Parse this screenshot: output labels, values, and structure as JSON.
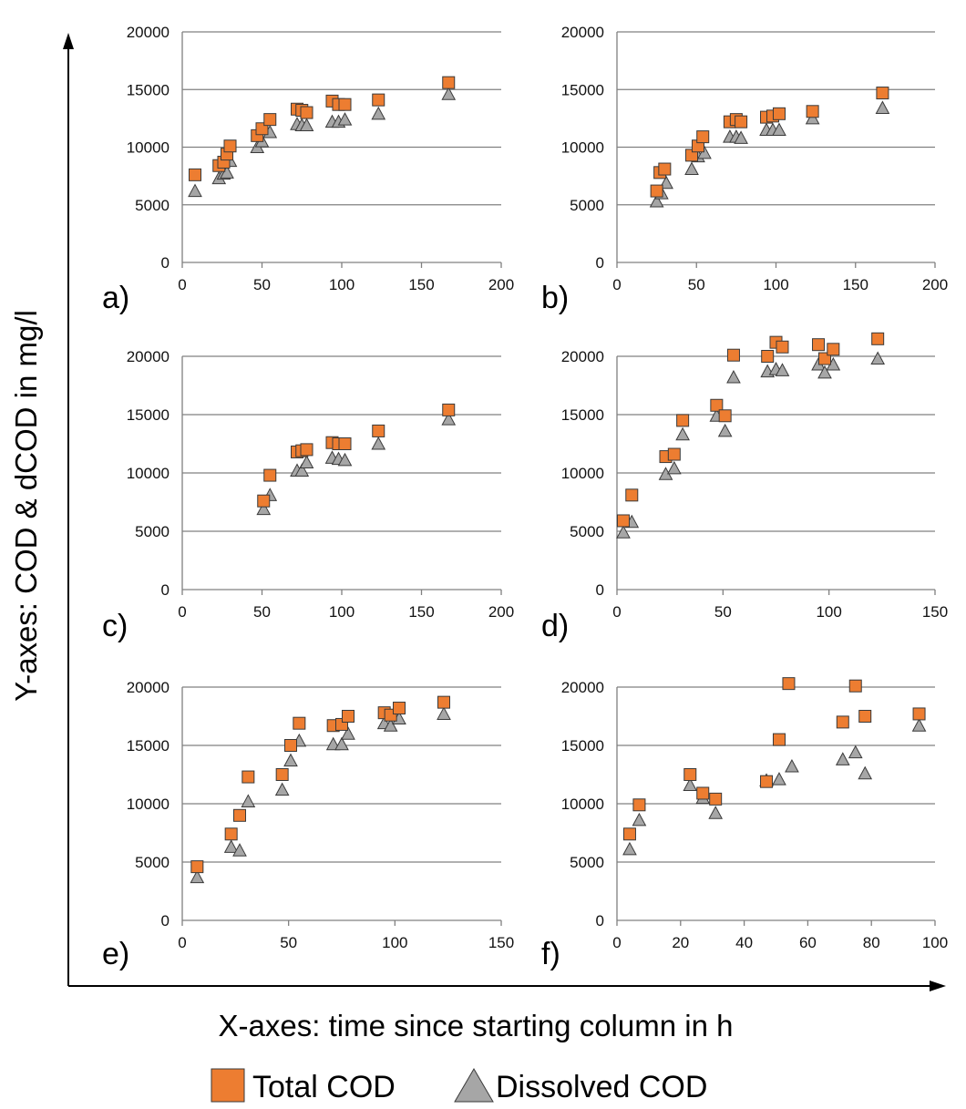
{
  "figure": {
    "y_axis_title": "Y-axes: COD & dCOD in mg/l",
    "x_axis_title": "X-axes: time since starting column in h"
  },
  "legend": [
    {
      "label": "Total COD",
      "marker": "square",
      "color": "#ed7d31"
    },
    {
      "label": "Dissolved COD",
      "marker": "triangle",
      "color": "#a6a6a6"
    }
  ],
  "chart_data": [
    {
      "panel": "a)",
      "type": "scatter",
      "xlim": [
        0,
        200
      ],
      "ylim": [
        0,
        20000
      ],
      "xticks": [
        0,
        50,
        100,
        150,
        200
      ],
      "yticks": [
        0,
        5000,
        10000,
        15000,
        20000
      ],
      "grid": "horizontal",
      "series": [
        {
          "name": "Total COD",
          "marker": "square",
          "x": [
            8,
            23,
            26,
            28,
            30,
            47,
            50,
            55,
            72,
            75,
            78,
            94,
            98,
            102,
            123,
            167
          ],
          "y": [
            7600,
            8400,
            8700,
            9400,
            10100,
            11000,
            11600,
            12400,
            13300,
            13200,
            13000,
            14000,
            13700,
            13700,
            14100,
            15600
          ]
        },
        {
          "name": "Dissolved COD",
          "marker": "triangle",
          "x": [
            8,
            23,
            26,
            28,
            30,
            47,
            50,
            55,
            72,
            75,
            78,
            94,
            98,
            102,
            123,
            167
          ],
          "y": [
            6200,
            7300,
            7700,
            7800,
            8800,
            10000,
            10500,
            11300,
            12000,
            11900,
            11900,
            12200,
            12200,
            12400,
            12900,
            14600
          ]
        }
      ]
    },
    {
      "panel": "b)",
      "type": "scatter",
      "xlim": [
        0,
        200
      ],
      "ylim": [
        0,
        20000
      ],
      "xticks": [
        0,
        50,
        100,
        150,
        200
      ],
      "yticks": [
        0,
        5000,
        10000,
        15000,
        20000
      ],
      "grid": "horizontal",
      "series": [
        {
          "name": "Total COD",
          "marker": "square",
          "x": [
            25,
            27,
            30,
            47,
            51,
            54,
            71,
            75,
            78,
            94,
            98,
            102,
            123,
            167
          ],
          "y": [
            6200,
            7800,
            8100,
            9300,
            10100,
            10900,
            12200,
            12400,
            12200,
            12600,
            12700,
            12900,
            13100,
            14700
          ]
        },
        {
          "name": "Dissolved COD",
          "marker": "triangle",
          "x": [
            25,
            28,
            31,
            47,
            51,
            55,
            71,
            75,
            78,
            94,
            98,
            102,
            123,
            167
          ],
          "y": [
            5300,
            6000,
            6900,
            8100,
            9200,
            9500,
            10900,
            10900,
            10800,
            11500,
            11500,
            11500,
            12500,
            13400
          ]
        }
      ]
    },
    {
      "panel": "c)",
      "type": "scatter",
      "xlim": [
        0,
        200
      ],
      "ylim": [
        0,
        20000
      ],
      "xticks": [
        0,
        50,
        100,
        150,
        200
      ],
      "yticks": [
        0,
        5000,
        10000,
        15000,
        20000
      ],
      "grid": "horizontal",
      "series": [
        {
          "name": "Total COD",
          "marker": "square",
          "x": [
            51,
            55,
            72,
            75,
            78,
            94,
            98,
            102,
            123,
            167
          ],
          "y": [
            7600,
            9800,
            11800,
            11900,
            12000,
            12600,
            12500,
            12500,
            13600,
            15400
          ]
        },
        {
          "name": "Dissolved COD",
          "marker": "triangle",
          "x": [
            51,
            55,
            72,
            75,
            78,
            94,
            98,
            102,
            123,
            167
          ],
          "y": [
            6900,
            8100,
            10200,
            10200,
            10900,
            11300,
            11200,
            11100,
            12500,
            14600
          ]
        }
      ]
    },
    {
      "panel": "d)",
      "type": "scatter",
      "xlim": [
        0,
        150
      ],
      "ylim": [
        0,
        20000
      ],
      "xticks": [
        0,
        50,
        100,
        150
      ],
      "yticks": [
        0,
        5000,
        10000,
        15000,
        20000
      ],
      "grid": "horizontal",
      "series": [
        {
          "name": "Total COD",
          "marker": "square",
          "x": [
            3,
            7,
            23,
            27,
            31,
            47,
            51,
            55,
            71,
            75,
            78,
            95,
            98,
            102,
            123
          ],
          "y": [
            5900,
            8100,
            11400,
            11600,
            14500,
            15800,
            14900,
            20100,
            20000,
            21200,
            20800,
            21000,
            19800,
            20600,
            21500
          ]
        },
        {
          "name": "Dissolved COD",
          "marker": "triangle",
          "x": [
            3,
            7,
            23,
            27,
            31,
            47,
            51,
            55,
            71,
            75,
            78,
            95,
            98,
            102,
            123
          ],
          "y": [
            4900,
            5800,
            9900,
            10400,
            13300,
            14900,
            13600,
            18200,
            18700,
            18900,
            18800,
            19300,
            18600,
            19300,
            19800
          ]
        }
      ]
    },
    {
      "panel": "e)",
      "type": "scatter",
      "xlim": [
        0,
        150
      ],
      "ylim": [
        0,
        20000
      ],
      "xticks": [
        0,
        50,
        100,
        150
      ],
      "yticks": [
        0,
        5000,
        10000,
        15000,
        20000
      ],
      "grid": "horizontal",
      "series": [
        {
          "name": "Total COD",
          "marker": "square",
          "x": [
            7,
            23,
            27,
            31,
            47,
            51,
            55,
            71,
            75,
            78,
            95,
            98,
            102,
            123
          ],
          "y": [
            4600,
            7400,
            9000,
            12300,
            12500,
            15000,
            16900,
            16700,
            16800,
            17500,
            17800,
            17600,
            18200,
            18700
          ]
        },
        {
          "name": "Dissolved COD",
          "marker": "triangle",
          "x": [
            7,
            23,
            27,
            31,
            47,
            51,
            55,
            71,
            75,
            78,
            95,
            98,
            102,
            123
          ],
          "y": [
            3700,
            6300,
            6000,
            10200,
            11200,
            13700,
            15400,
            15100,
            15100,
            16000,
            16900,
            16700,
            17300,
            17700
          ]
        }
      ]
    },
    {
      "panel": "f)",
      "type": "scatter",
      "xlim": [
        0,
        100
      ],
      "ylim": [
        0,
        20000
      ],
      "xticks": [
        0,
        20,
        40,
        60,
        80,
        100
      ],
      "yticks": [
        0,
        5000,
        10000,
        15000,
        20000
      ],
      "grid": "horizontal",
      "series": [
        {
          "name": "Total COD",
          "marker": "square",
          "x": [
            4,
            7,
            23,
            27,
            31,
            47,
            51,
            54,
            71,
            75,
            78,
            95
          ],
          "y": [
            7400,
            9900,
            12500,
            10900,
            10400,
            11900,
            15500,
            20300,
            17000,
            20100,
            17500,
            17700
          ]
        },
        {
          "name": "Dissolved COD",
          "marker": "triangle",
          "x": [
            4,
            7,
            23,
            27,
            31,
            47,
            51,
            55,
            71,
            75,
            78,
            95
          ],
          "y": [
            6100,
            8600,
            11600,
            10500,
            9200,
            12000,
            12100,
            13200,
            13800,
            14400,
            12600,
            16700
          ]
        }
      ]
    }
  ]
}
